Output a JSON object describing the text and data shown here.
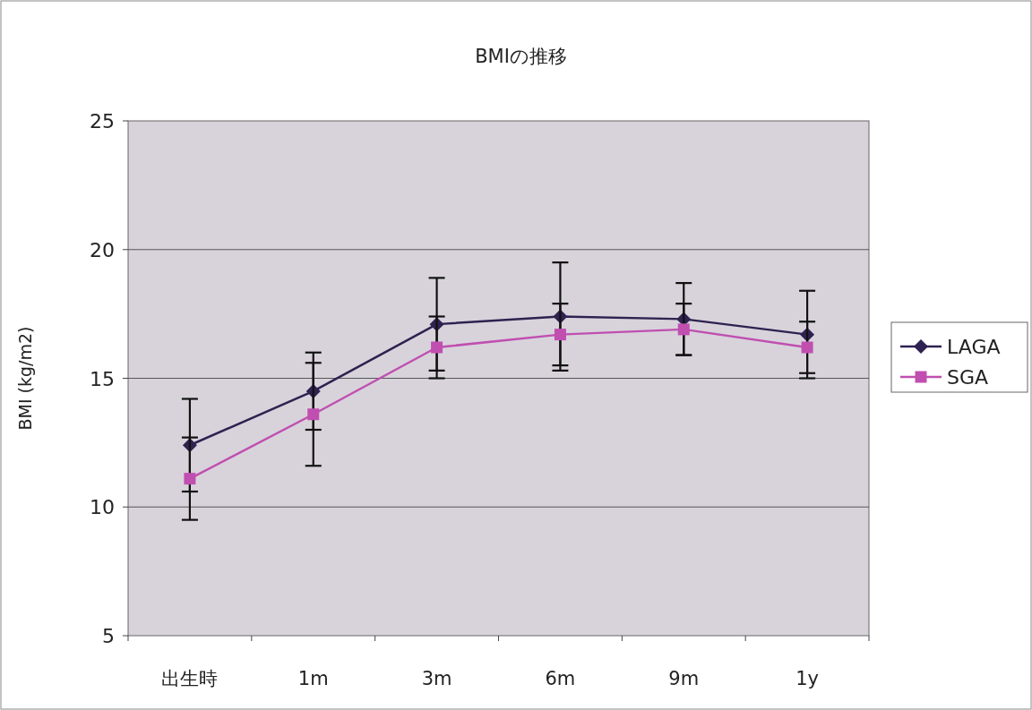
{
  "chart_data": {
    "type": "line",
    "title": "BMIの推移",
    "ylabel": "BMI (kg/m2)",
    "categories": [
      "出生時",
      "1m",
      "3m",
      "6m",
      "9m",
      "1y"
    ],
    "series": [
      {
        "name": "LAGA",
        "color": "#2e2250",
        "marker": "diamond",
        "values": [
          12.4,
          14.5,
          17.1,
          17.4,
          17.3,
          16.7
        ],
        "errors": [
          1.8,
          1.5,
          1.8,
          2.1,
          1.4,
          1.7
        ]
      },
      {
        "name": "SGA",
        "color": "#c04fb0",
        "marker": "square",
        "values": [
          11.1,
          13.6,
          16.2,
          16.7,
          16.9,
          16.2
        ],
        "errors": [
          1.6,
          2.0,
          1.2,
          1.2,
          1.0,
          1.0
        ]
      }
    ],
    "ylim": [
      5,
      25
    ],
    "yticks": [
      5,
      10,
      15,
      20,
      25
    ],
    "grid": "y",
    "legend": "right"
  }
}
